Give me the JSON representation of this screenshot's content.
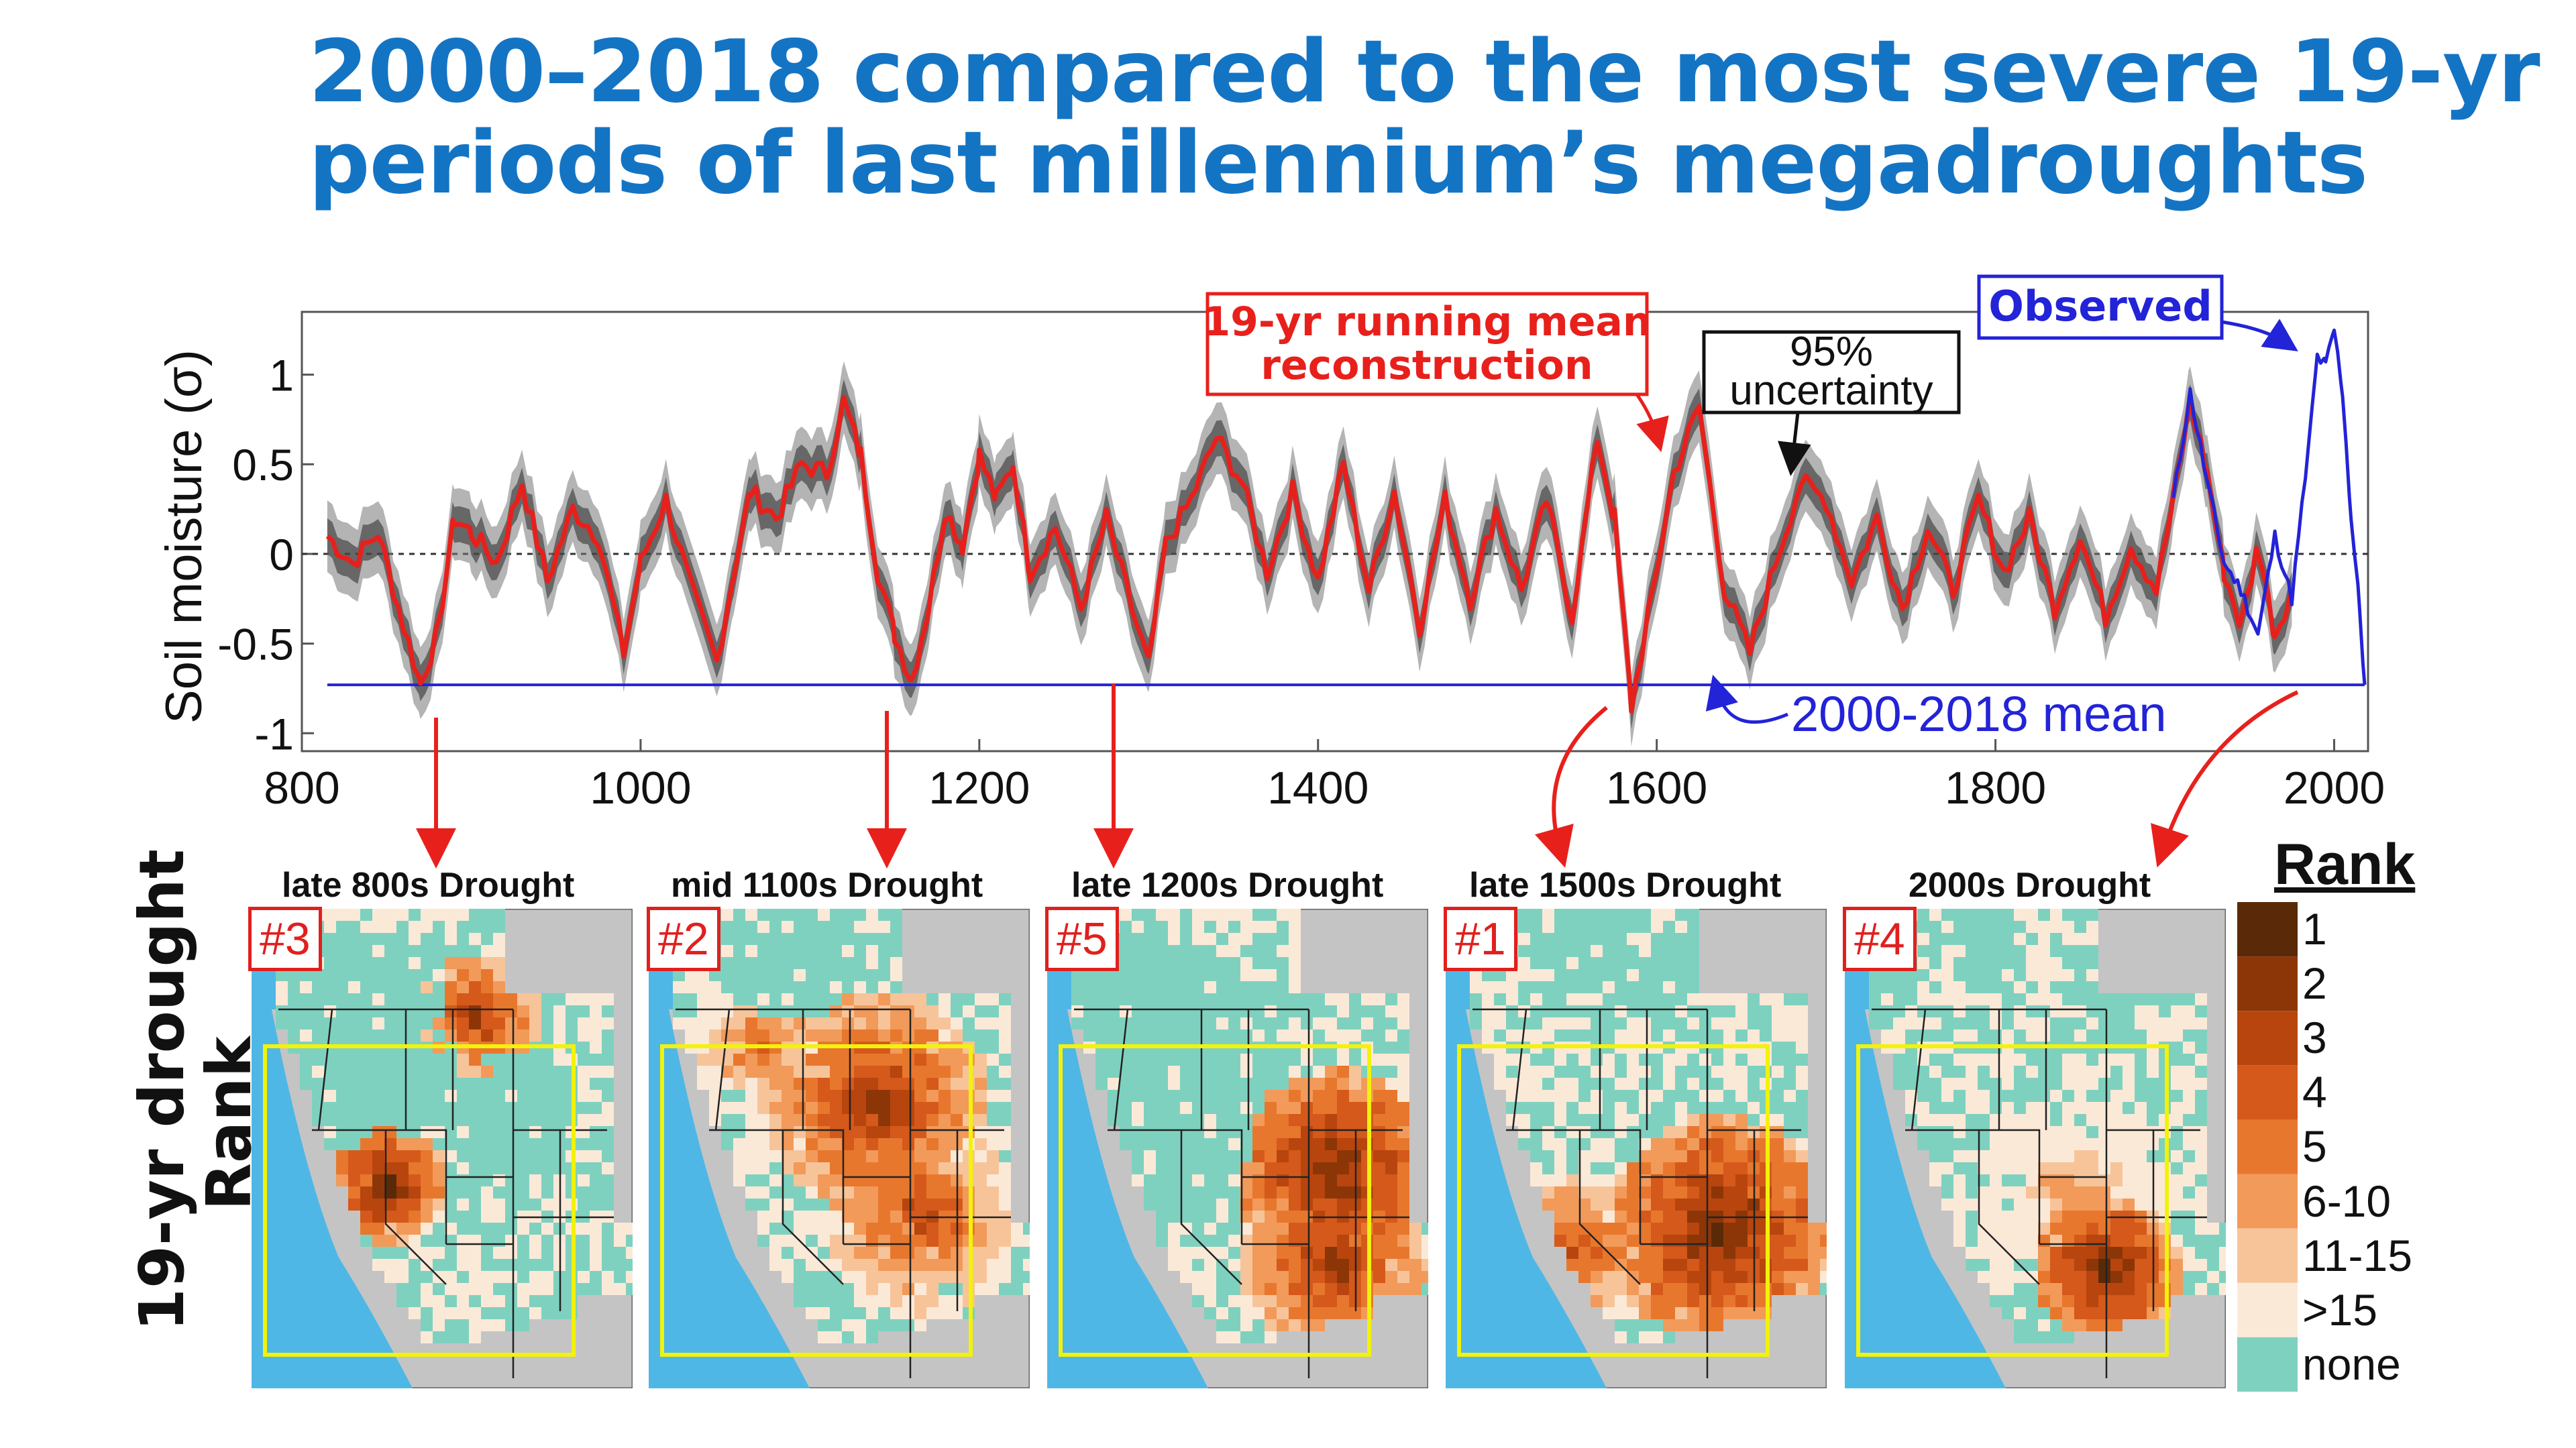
{
  "title": {
    "line1": "2000–2018 compared to the most severe 19-yr",
    "line2": "periods of last millennium’s megadroughts"
  },
  "chart_data": {
    "type": "line",
    "ylabel": "Soil moisture (σ)",
    "xlim": [
      800,
      2020
    ],
    "ylim": [
      -1.1,
      1.35
    ],
    "xticks": [
      800,
      1000,
      1200,
      1400,
      1600,
      1800,
      2000
    ],
    "yticks": [
      1,
      0.5,
      0,
      -0.5,
      -1
    ],
    "ytick_labels": [
      "1",
      "0.5",
      "0",
      "-0.5",
      "-1"
    ],
    "zero_line": 0,
    "mean_2000_2018": -0.73,
    "annotations": {
      "reconstruction": "19-yr running mean\nreconstruction",
      "uncertainty": "95%\nuncertainty",
      "observed": "Observed",
      "mean": "2000-2018 mean"
    },
    "series": [
      {
        "name": "19-yr running mean reconstruction",
        "color": "#e8201c",
        "x": [
          815,
          830,
          845,
          860,
          870,
          880,
          890,
          900,
          915,
          930,
          945,
          960,
          975,
          990,
          1000,
          1015,
          1030,
          1045,
          1055,
          1065,
          1080,
          1095,
          1110,
          1120,
          1130,
          1140,
          1150,
          1160,
          1170,
          1180,
          1190,
          1200,
          1210,
          1220,
          1230,
          1245,
          1260,
          1275,
          1290,
          1300,
          1310,
          1325,
          1340,
          1355,
          1370,
          1385,
          1400,
          1415,
          1430,
          1445,
          1460,
          1475,
          1490,
          1505,
          1520,
          1535,
          1550,
          1565,
          1575,
          1585,
          1595,
          1610,
          1625,
          1640,
          1655,
          1670,
          1685,
          1700,
          1715,
          1730,
          1745,
          1760,
          1775,
          1790,
          1805,
          1820,
          1835,
          1850,
          1865,
          1880,
          1895,
          1905,
          1915,
          1925,
          1935,
          1945,
          1955,
          1965,
          1975
        ],
        "values": [
          0.1,
          -0.05,
          0.12,
          -0.4,
          -0.72,
          -0.45,
          0.2,
          0.12,
          -0.05,
          0.4,
          -0.15,
          0.25,
          0.1,
          -0.55,
          -0.05,
          0.3,
          -0.2,
          -0.6,
          -0.1,
          0.35,
          0.2,
          0.5,
          0.45,
          0.85,
          0.55,
          -0.1,
          -0.45,
          -0.7,
          -0.3,
          0.25,
          0.05,
          0.55,
          0.3,
          0.5,
          -0.1,
          0.15,
          -0.3,
          0.2,
          -0.3,
          -0.62,
          0.05,
          0.3,
          0.65,
          0.4,
          -0.1,
          0.35,
          -0.15,
          0.5,
          -0.2,
          0.35,
          -0.4,
          0.3,
          -0.25,
          0.25,
          -0.2,
          0.3,
          -0.35,
          0.65,
          0.2,
          -0.85,
          -0.35,
          0.45,
          0.82,
          -0.2,
          -0.55,
          -0.05,
          0.4,
          0.3,
          -0.15,
          0.2,
          -0.3,
          0.15,
          -0.2,
          0.3,
          -0.1,
          0.2,
          -0.3,
          0.1,
          -0.35,
          0.05,
          -0.2,
          0.3,
          0.85,
          0.45,
          -0.1,
          -0.4,
          0.05,
          -0.45,
          -0.2
        ]
      },
      {
        "name": "Observed",
        "color": "#2323d8",
        "x": [
          1905,
          1915,
          1925,
          1935,
          1945,
          1955,
          1965,
          1975,
          1985,
          1990,
          1995,
          2000,
          2005,
          2010,
          2015,
          2018
        ],
        "values": [
          0.3,
          0.9,
          0.4,
          -0.05,
          -0.2,
          -0.45,
          0.1,
          -0.25,
          0.6,
          1.1,
          1.05,
          1.25,
          0.9,
          0.2,
          -0.3,
          -0.73
        ]
      }
    ]
  },
  "maps": [
    {
      "title": "late 800s Drought",
      "rank": "#3"
    },
    {
      "title": "mid 1100s Drought",
      "rank": "#2"
    },
    {
      "title": "late 1200s Drought",
      "rank": "#5"
    },
    {
      "title": "late 1500s Drought",
      "rank": "#1"
    },
    {
      "title": "2000s Drought",
      "rank": "#4"
    }
  ],
  "side_label": {
    "line1": "19-yr drought",
    "line2": "Rank"
  },
  "legend": {
    "title": "Rank",
    "items": [
      {
        "label": "1",
        "color": "#5a2a08"
      },
      {
        "label": "2",
        "color": "#8c3608"
      },
      {
        "label": "3",
        "color": "#b8450e"
      },
      {
        "label": "4",
        "color": "#d4591a"
      },
      {
        "label": "5",
        "color": "#e8772e"
      },
      {
        "label": "6-10",
        "color": "#f29a5a"
      },
      {
        "label": "11-15",
        "color": "#f7c49a"
      },
      {
        "label": ">15",
        "color": "#fbe9d8"
      },
      {
        "label": "none",
        "color": "#7fd1bf"
      }
    ]
  },
  "colors": {
    "title": "#1474c4",
    "reconstruction": "#e8201c",
    "observed": "#2323d8",
    "ocean": "#4fb7e6",
    "outside": "#c4c4c4",
    "box": "#f2f20a"
  }
}
